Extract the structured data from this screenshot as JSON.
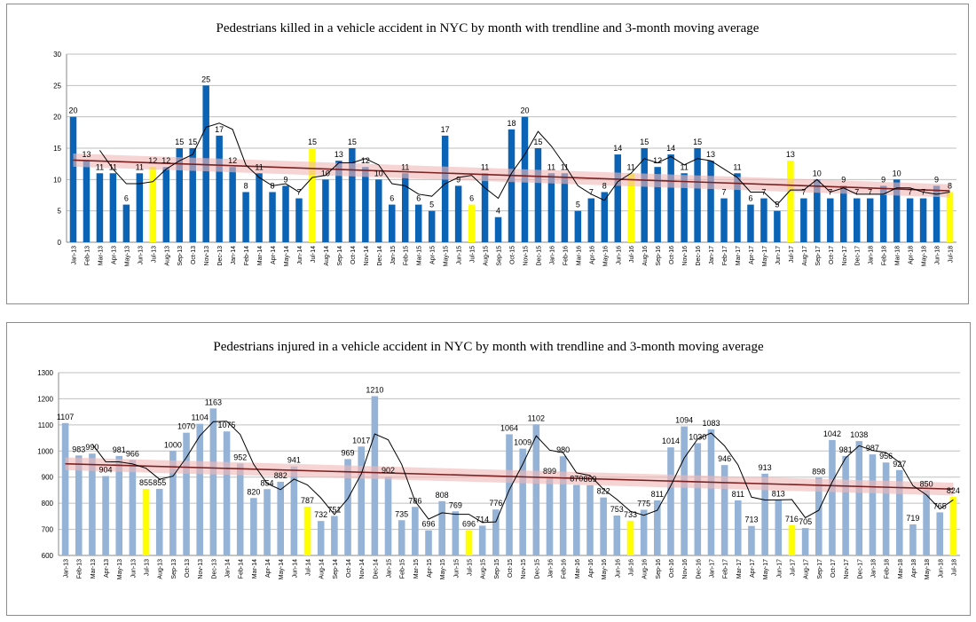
{
  "colors": {
    "bar_killed": "#0a63b4",
    "bar_injured": "#95b3d7",
    "highlight": "#ffff00",
    "trendline": "#7b2020",
    "trend_band": "#f2b8b8",
    "moving_average": "#000000",
    "grid": "#bfbfbf"
  },
  "chart_data": [
    {
      "type": "bar",
      "title": "Pedestrians killed in a vehicle accident  in NYC  by month with trendline and 3-month moving average",
      "xlabel": "",
      "ylabel": "",
      "ylim": [
        0,
        30
      ],
      "yticks": [
        "0",
        "5",
        "10",
        "15",
        "20",
        "25",
        "30"
      ],
      "grid": true,
      "legend": "none",
      "categories": [
        "Jan-13",
        "Feb-13",
        "Mar-13",
        "Apr-13",
        "May-13",
        "Jun-13",
        "Jul-13",
        "Aug-13",
        "Sep-13",
        "Oct-13",
        "Nov-13",
        "Dec-13",
        "Jan-14",
        "Feb-14",
        "Mar-14",
        "Apr-14",
        "May-14",
        "Jun-14",
        "Jul-14",
        "Aug-14",
        "Sep-14",
        "Oct-14",
        "Nov-14",
        "Dec-14",
        "Jan-15",
        "Feb-15",
        "Mar-15",
        "Apr-15",
        "May-15",
        "Jun-15",
        "Jul-15",
        "Aug-15",
        "Sep-15",
        "Oct-15",
        "Nov-15",
        "Dec-15",
        "Jan-16",
        "Feb-16",
        "Mar-16",
        "Apr-16",
        "May-16",
        "Jun-16",
        "Jul-16",
        "Aug-16",
        "Sep-16",
        "Oct-16",
        "Nov-16",
        "Dec-16",
        "Jan-17",
        "Feb-17",
        "Mar-17",
        "Apr-17",
        "May-17",
        "Jun-17",
        "Jul-17",
        "Aug-17",
        "Sep-17",
        "Oct-17",
        "Nov-17",
        "Dec-17",
        "Jan-18",
        "Feb-18",
        "Mar-18",
        "Apr-18",
        "May-18",
        "Jun-18",
        "Jul-18"
      ],
      "values": [
        20,
        13,
        11,
        11,
        6,
        11,
        12,
        12,
        15,
        15,
        25,
        17,
        12,
        8,
        11,
        8,
        9,
        7,
        15,
        10,
        13,
        15,
        12,
        10,
        6,
        11,
        6,
        5,
        17,
        9,
        6,
        11,
        4,
        18,
        20,
        15,
        11,
        11,
        5,
        7,
        8,
        14,
        11,
        15,
        12,
        14,
        11,
        15,
        13,
        7,
        11,
        6,
        7,
        5,
        13,
        7,
        10,
        7,
        9,
        7,
        7,
        9,
        10,
        7,
        7,
        9,
        8
      ],
      "data_labels": [
        "20",
        "13",
        "11",
        "11",
        "6",
        "11",
        "12",
        "12",
        "15",
        "15",
        "25",
        "17",
        "12",
        "8",
        "11",
        "8",
        "9",
        "7",
        "15",
        "10",
        "13",
        "15",
        "12",
        "10",
        "6",
        "11",
        "6",
        "5",
        "17",
        "9",
        "6",
        "11",
        "4",
        "18",
        "20",
        "15",
        "11",
        "11",
        "5",
        "7",
        "8",
        "14",
        "11",
        "15",
        "12",
        "14",
        "11",
        "15",
        "13",
        "7",
        "11",
        "6",
        "7",
        "5",
        "13",
        "7",
        "10",
        "7",
        "9",
        "7",
        "7",
        "9",
        "10",
        "7",
        "7",
        "9",
        "8"
      ],
      "highlighted_categories": [
        "Jul-13",
        "Jul-14",
        "Jul-15",
        "Jul-16",
        "Jul-17",
        "Jul-18"
      ],
      "trendline": {
        "start": 13.1,
        "end": 8.2
      },
      "moving_average_window": 3
    },
    {
      "type": "bar",
      "title": "Pedestrians injured in a vehicle accident in NYC by month with trendline and 3-month moving average",
      "xlabel": "",
      "ylabel": "",
      "ylim": [
        600,
        1300
      ],
      "yticks": [
        "600",
        "700",
        "800",
        "900",
        "1000",
        "1100",
        "1200",
        "1300"
      ],
      "grid": true,
      "legend": "none",
      "categories": [
        "Jan-13",
        "Feb-13",
        "Mar-13",
        "Apr-13",
        "May-13",
        "Jun-13",
        "Jul-13",
        "Aug-13",
        "Sep-13",
        "Oct-13",
        "Nov-13",
        "Dec-13",
        "Jan-14",
        "Feb-14",
        "Mar-14",
        "Apr-14",
        "May-14",
        "Jun-14",
        "Jul-14",
        "Aug-14",
        "Sep-14",
        "Oct-14",
        "Nov-14",
        "Dec-14",
        "Jan-15",
        "Feb-15",
        "Mar-15",
        "Apr-15",
        "May-15",
        "Jun-15",
        "Jul-15",
        "Aug-15",
        "Sep-15",
        "Oct-15",
        "Nov-15",
        "Dec-15",
        "Jan-16",
        "Feb-16",
        "Mar-16",
        "Apr-16",
        "May-16",
        "Jun-16",
        "Jul-16",
        "Aug-16",
        "Sep-16",
        "Oct-16",
        "Nov-16",
        "Dec-16",
        "Jan-17",
        "Feb-17",
        "Mar-17",
        "Apr-17",
        "May-17",
        "Jun-17",
        "Jul-17",
        "Aug-17",
        "Sep-17",
        "Oct-17",
        "Nov-17",
        "Dec-17",
        "Jan-18",
        "Feb-18",
        "Mar-18",
        "Apr-18",
        "May-18",
        "Jun-18",
        "Jul-18"
      ],
      "values": [
        1107,
        983,
        990,
        904,
        981,
        966,
        855,
        855,
        1000,
        1070,
        1104,
        1163,
        1075,
        952,
        820,
        854,
        882,
        941,
        787,
        732,
        751,
        969,
        1017,
        1210,
        902,
        735,
        786,
        696,
        808,
        769,
        696,
        714,
        776,
        1064,
        1009,
        1102,
        899,
        980,
        870,
        869,
        822,
        753,
        733,
        775,
        811,
        1014,
        1094,
        1030,
        1083,
        946,
        811,
        713,
        913,
        813,
        716,
        705,
        898,
        1042,
        981,
        1038,
        987,
        956,
        927,
        719,
        850,
        765,
        824
      ],
      "data_labels": [
        "1107",
        "983",
        "990",
        "904",
        "981",
        "966",
        "855",
        "855",
        "1000",
        "1070",
        "1104",
        "1163",
        "1075",
        "952",
        "820",
        "854",
        "882",
        "941",
        "787",
        "732",
        "751",
        "969",
        "1017",
        "1210",
        "902",
        "735",
        "786",
        "696",
        "808",
        "769",
        "696",
        "714",
        "776",
        "1064",
        "1009",
        "1102",
        "899",
        "980",
        "870",
        "869",
        "822",
        "753",
        "733",
        "775",
        "811",
        "1014",
        "1094",
        "1030",
        "1083",
        "946",
        "811",
        "713",
        "913",
        "813",
        "716",
        "705",
        "898",
        "1042",
        "981",
        "1038",
        "987",
        "956",
        "927",
        "719",
        "850",
        "765",
        "824"
      ],
      "highlighted_categories": [
        "Jul-13",
        "Jul-14",
        "Jul-15",
        "Jul-16",
        "Jul-17",
        "Jul-18"
      ],
      "trendline": {
        "start": 951,
        "end": 854
      },
      "moving_average_window": 3
    }
  ]
}
